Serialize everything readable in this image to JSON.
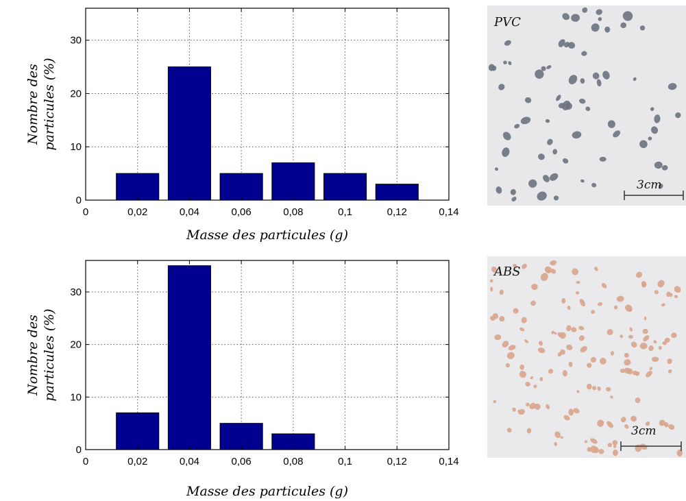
{
  "chart_data": [
    {
      "type": "bar",
      "categories": [
        "0,02",
        "0,04",
        "0,06",
        "0,08",
        "0,1",
        "0,12"
      ],
      "x": [
        0.02,
        0.04,
        0.06,
        0.08,
        0.1,
        0.12
      ],
      "values": [
        5,
        25,
        5,
        7,
        5,
        3
      ],
      "xlabel": "Masse des particules (g)",
      "ylabel": "Nombre des particules (%)",
      "ylabel_lines": [
        "Nombre des",
        "particules (%)"
      ],
      "xlim": [
        0,
        0.14
      ],
      "ylim": [
        0,
        36
      ],
      "xticks": [
        0,
        0.02,
        0.04,
        0.06,
        0.08,
        0.1,
        0.12,
        0.14
      ],
      "xtick_labels": [
        "0",
        "0,02",
        "0,04",
        "0,06",
        "0,08",
        "0,1",
        "0,12",
        "0,14"
      ],
      "yticks": [
        0,
        10,
        20,
        30
      ],
      "ytick_labels": [
        "0",
        "10",
        "20",
        "30"
      ],
      "grid": true,
      "bar_color": "#00008f"
    },
    {
      "type": "bar",
      "categories": [
        "0,02",
        "0,04",
        "0,06",
        "0,08"
      ],
      "x": [
        0.02,
        0.04,
        0.06,
        0.08
      ],
      "values": [
        7,
        35,
        5,
        3
      ],
      "xlabel": "Masse des particules (g)",
      "ylabel": "Nombre des particules (%)",
      "ylabel_lines": [
        "Nombre des",
        "particules (%)"
      ],
      "xlim": [
        0,
        0.14
      ],
      "ylim": [
        0,
        36
      ],
      "xticks": [
        0,
        0.02,
        0.04,
        0.06,
        0.08,
        0.1,
        0.12,
        0.14
      ],
      "xtick_labels": [
        "0",
        "0,02",
        "0,04",
        "0,06",
        "0,08",
        "0,1",
        "0,12",
        "0,14"
      ],
      "yticks": [
        0,
        10,
        20,
        30
      ],
      "ytick_labels": [
        "0",
        "10",
        "20",
        "30"
      ],
      "grid": true,
      "bar_color": "#00008f"
    }
  ],
  "photos": [
    {
      "label": "PVC",
      "scale_label": "3cm",
      "particle_color": "#6b7280",
      "background_color": "#e8e8ea"
    },
    {
      "label": "ABS",
      "scale_label": "3cm",
      "particle_color": "#d9a58c",
      "background_color": "#eaeaec"
    }
  ]
}
